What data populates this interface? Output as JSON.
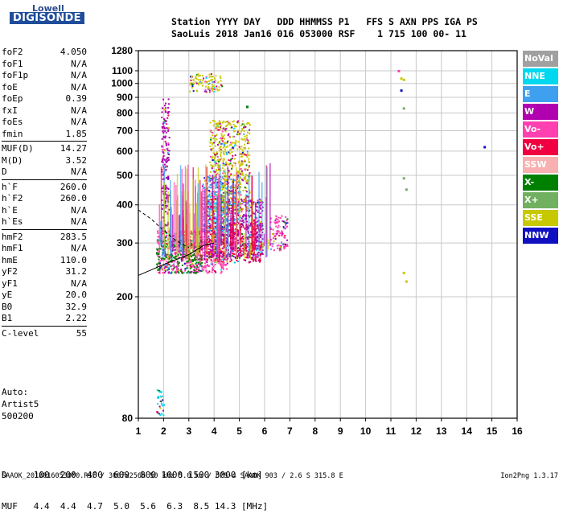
{
  "logo": {
    "top": "Lowell",
    "bottom": "DIGISONDE"
  },
  "header": {
    "row1": "Station YYYY DAY   DDD HHMMSS P1   FFS S AXN PPS IGA PS",
    "row2": "SaoLuis 2018 Jan16 016 053000 RSF    1 715 100 00- 11"
  },
  "params_group1": [
    {
      "name": "foF2",
      "value": "4.050"
    },
    {
      "name": "foF1",
      "value": "N/A"
    },
    {
      "name": "foF1p",
      "value": "N/A"
    },
    {
      "name": "foE",
      "value": "N/A"
    },
    {
      "name": "foEp",
      "value": "0.39"
    },
    {
      "name": "fxI",
      "value": "N/A"
    },
    {
      "name": "foEs",
      "value": "N/A"
    },
    {
      "name": "fmin",
      "value": "1.85"
    }
  ],
  "params_group2": [
    {
      "name": "MUF(D)",
      "value": "14.27"
    },
    {
      "name": "M(D)",
      "value": "3.52"
    },
    {
      "name": "D",
      "value": "N/A"
    }
  ],
  "params_group3": [
    {
      "name": "h`F",
      "value": "260.0"
    },
    {
      "name": "h`F2",
      "value": "260.0"
    },
    {
      "name": "h`E",
      "value": "N/A"
    },
    {
      "name": "h`Es",
      "value": "N/A"
    }
  ],
  "params_group4": [
    {
      "name": "hmF2",
      "value": "283.5"
    },
    {
      "name": "hmF1",
      "value": "N/A"
    },
    {
      "name": "hmE",
      "value": "110.0"
    },
    {
      "name": "yF2",
      "value": "31.2"
    },
    {
      "name": "yF1",
      "value": "N/A"
    },
    {
      "name": "yE",
      "value": "20.0"
    },
    {
      "name": "B0",
      "value": "32.9"
    },
    {
      "name": "B1",
      "value": "2.22"
    }
  ],
  "params_group5": [
    {
      "name": "C-level",
      "value": "55"
    }
  ],
  "auto": {
    "line1": "Auto:",
    "line2": "Artist5",
    "line3": "500200"
  },
  "legend": [
    {
      "label": "NoVal",
      "color": "#a0a0a0"
    },
    {
      "label": "NNE",
      "color": "#00d8f0"
    },
    {
      "label": "E",
      "color": "#40a0f0"
    },
    {
      "label": "W",
      "color": "#b000b0"
    },
    {
      "label": "Vo-",
      "color": "#ff40b0"
    },
    {
      "label": "Vo+",
      "color": "#f00040"
    },
    {
      "label": "SSW",
      "color": "#f8b0b0"
    },
    {
      "label": "X-",
      "color": "#008000"
    },
    {
      "label": "X+",
      "color": "#70b060"
    },
    {
      "label": "SSE",
      "color": "#c8c800"
    },
    {
      "label": "NNW",
      "color": "#1010c0"
    }
  ],
  "bottom_table": {
    "row1": "D     100  200  400  600  800 1000 1500 3000 [km]",
    "row2": "MUF   4.4  4.4  4.7  5.0  5.6  6.3  8.5 14.3 [MHz]"
  },
  "footer": "SAAOK_2018016053000.RSF / 300fx256h 50 kHz 5.0 km / DPS-4 SAAOK 903 / 2.6 S 315.8 E",
  "version": "Ion2Png 1.3.17",
  "chart_data": {
    "type": "scatter",
    "title": "",
    "xlabel": "",
    "ylabel": "",
    "xlim": [
      1,
      16
    ],
    "ylim": [
      80,
      1280
    ],
    "x_ticks": [
      1,
      2,
      3,
      4,
      5,
      6,
      7,
      8,
      9,
      10,
      11,
      12,
      13,
      14,
      15,
      16
    ],
    "y_ticks": [
      80,
      200,
      300,
      400,
      500,
      600,
      700,
      800,
      900,
      1000,
      1100,
      1280
    ],
    "y_scale": "log",
    "grid": true,
    "clusters": [
      {
        "series": "Vo-",
        "x_range": [
          1.7,
          4.5
        ],
        "y_range": [
          240,
          330
        ]
      },
      {
        "series": "Vo+",
        "x_range": [
          3.6,
          5.9
        ],
        "y_range": [
          260,
          350
        ]
      },
      {
        "series": "W",
        "x_range": [
          3.7,
          5.9
        ],
        "y_range": [
          270,
          420
        ]
      },
      {
        "series": "SSE",
        "x_range": [
          3.0,
          4.3
        ],
        "y_range": [
          940,
          1080
        ]
      },
      {
        "series": "SSE",
        "x_range": [
          3.8,
          5.4
        ],
        "y_range": [
          380,
          760
        ]
      },
      {
        "series": "X-",
        "x_range": [
          1.7,
          3.5
        ],
        "y_range": [
          240,
          310
        ]
      },
      {
        "series": "E",
        "x_range": [
          3.5,
          5.0
        ],
        "y_range": [
          330,
          500
        ]
      },
      {
        "series": "NNE",
        "x_range": [
          1.7,
          2.0
        ],
        "y_range": [
          82,
          100
        ]
      },
      {
        "series": "W",
        "x_range": [
          1.9,
          2.2
        ],
        "y_range": [
          330,
          900
        ]
      },
      {
        "series": "Vo-",
        "x_range": [
          6.2,
          6.9
        ],
        "y_range": [
          285,
          370
        ]
      }
    ],
    "isolated_points": [
      {
        "series": "NNW",
        "x": 14.7,
        "y": 620
      },
      {
        "series": "Vo-",
        "x": 11.3,
        "y": 1100
      },
      {
        "series": "SSE",
        "x": 11.4,
        "y": 1040
      },
      {
        "series": "SSE",
        "x": 11.5,
        "y": 1030
      },
      {
        "series": "NNW",
        "x": 11.4,
        "y": 950
      },
      {
        "series": "X+",
        "x": 11.5,
        "y": 830
      },
      {
        "series": "X+",
        "x": 11.5,
        "y": 490
      },
      {
        "series": "X+",
        "x": 11.6,
        "y": 450
      },
      {
        "series": "SSE",
        "x": 11.5,
        "y": 240
      },
      {
        "series": "SSE",
        "x": 11.6,
        "y": 225
      },
      {
        "series": "X-",
        "x": 5.3,
        "y": 840
      }
    ],
    "profile_curve": [
      [
        1.0,
        235
      ],
      [
        2.0,
        255
      ],
      [
        3.0,
        275
      ],
      [
        3.6,
        295
      ],
      [
        4.0,
        300
      ]
    ],
    "dashed_curve": [
      [
        1.0,
        385
      ],
      [
        1.5,
        360
      ],
      [
        2.0,
        330
      ],
      [
        2.5,
        305
      ],
      [
        3.0,
        290
      ]
    ]
  }
}
